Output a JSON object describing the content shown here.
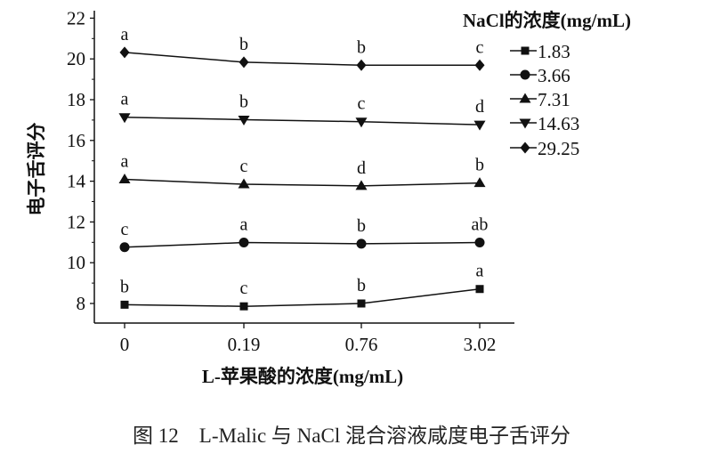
{
  "chart_data": {
    "type": "line",
    "caption": "图 12　L-Malic 与 NaCl 混合溶液咸度电子舌评分",
    "xlabel": "L-苹果酸的浓度(mg/mL)",
    "ylabel": "电子舌评分",
    "categories": [
      "0",
      "0.19",
      "0.76",
      "3.02"
    ],
    "ylim": [
      7,
      22
    ],
    "yticks": [
      8,
      10,
      12,
      14,
      16,
      18,
      20,
      22
    ],
    "grid": false,
    "legend_title": "NaCl的浓度(mg/mL)",
    "legend_position": "top-right",
    "series": [
      {
        "name": "1.83",
        "marker": "square",
        "values": [
          7.94,
          7.86,
          8.0,
          8.71
        ],
        "letters": [
          "b",
          "c",
          "b",
          "a"
        ]
      },
      {
        "name": "3.66",
        "marker": "circle",
        "values": [
          10.76,
          10.99,
          10.93,
          10.99
        ],
        "letters": [
          "c",
          "a",
          "b",
          "ab"
        ]
      },
      {
        "name": "7.31",
        "marker": "triangle-up",
        "values": [
          14.09,
          13.85,
          13.77,
          13.91
        ],
        "letters": [
          "a",
          "c",
          "d",
          "b"
        ]
      },
      {
        "name": "14.63",
        "marker": "triangle-down",
        "values": [
          17.14,
          17.02,
          16.92,
          16.77
        ],
        "letters": [
          "a",
          "b",
          "c",
          "d"
        ]
      },
      {
        "name": "29.25",
        "marker": "diamond",
        "values": [
          20.32,
          19.84,
          19.69,
          19.69
        ],
        "letters": [
          "a",
          "b",
          "b",
          "c"
        ]
      }
    ],
    "color": "#111111"
  }
}
